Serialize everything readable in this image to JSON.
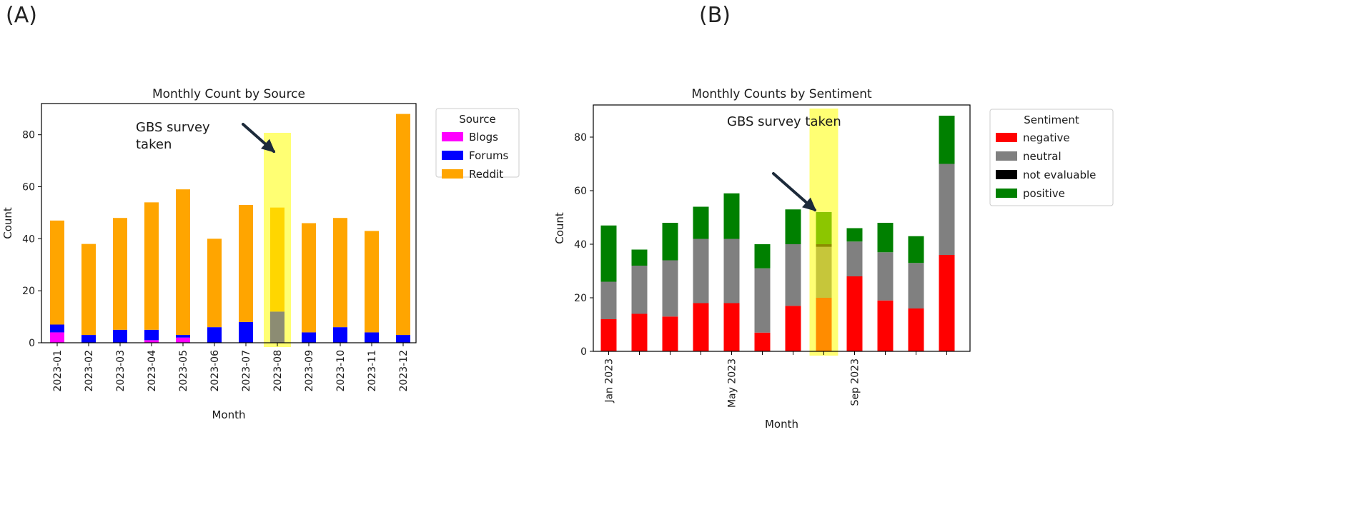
{
  "panels": {
    "a_label": "(A)",
    "b_label": "(B)"
  },
  "chart_data": [
    {
      "type": "bar",
      "stacked": true,
      "title": "Monthly Count by Source",
      "xlabel": "Month",
      "ylabel": "Count",
      "ylim": [
        0,
        92
      ],
      "yticks": [
        0,
        20,
        40,
        60,
        80
      ],
      "categories": [
        "2023-01",
        "2023-02",
        "2023-03",
        "2023-04",
        "2023-05",
        "2023-06",
        "2023-07",
        "2023-08",
        "2023-09",
        "2023-10",
        "2023-11",
        "2023-12"
      ],
      "legend": {
        "title": "Source",
        "placement": "outside-right"
      },
      "series": [
        {
          "name": "Blogs",
          "color": "#ff00ff",
          "values": [
            4,
            0,
            0,
            1,
            2,
            0,
            0,
            0,
            0,
            0,
            0,
            0
          ]
        },
        {
          "name": "Forums",
          "color": "#0000ff",
          "values": [
            3,
            3,
            5,
            4,
            1,
            6,
            8,
            12,
            4,
            6,
            4,
            3
          ]
        },
        {
          "name": "Reddit",
          "color": "#ffa500",
          "values": [
            40,
            35,
            43,
            49,
            56,
            34,
            45,
            40,
            42,
            42,
            39,
            85
          ]
        }
      ],
      "annotation": {
        "text_lines": [
          "GBS survey",
          "taken"
        ],
        "category_index": 7,
        "highlight_color": "#ffff00"
      }
    },
    {
      "type": "bar",
      "stacked": true,
      "title": "Monthly Counts by Sentiment",
      "xlabel": "Month",
      "ylabel": "Count",
      "ylim": [
        0,
        92
      ],
      "yticks": [
        0,
        20,
        40,
        60,
        80
      ],
      "categories": [
        "2023-01",
        "2023-02",
        "2023-03",
        "2023-04",
        "2023-05",
        "2023-06",
        "2023-07",
        "2023-08",
        "2023-09",
        "2023-10",
        "2023-11",
        "2023-12"
      ],
      "xtick_labels": [
        {
          "index": 0,
          "label": "Jan 2023"
        },
        {
          "index": 4,
          "label": "May 2023"
        },
        {
          "index": 8,
          "label": "Sep 2023"
        }
      ],
      "legend": {
        "title": "Sentiment",
        "placement": "outside-right"
      },
      "series": [
        {
          "name": "negative",
          "color": "#ff0000",
          "values": [
            12,
            14,
            13,
            18,
            18,
            7,
            17,
            20,
            28,
            19,
            16,
            36
          ]
        },
        {
          "name": "neutral",
          "color": "#808080",
          "values": [
            14,
            18,
            21,
            24,
            24,
            24,
            23,
            19,
            13,
            18,
            17,
            34
          ]
        },
        {
          "name": "not evaluable",
          "color": "#000000",
          "values": [
            0,
            0,
            0,
            0,
            0,
            0,
            0,
            1,
            0,
            0,
            0,
            0
          ]
        },
        {
          "name": "positive",
          "color": "#008000",
          "values": [
            21,
            6,
            14,
            12,
            17,
            9,
            13,
            12,
            5,
            11,
            10,
            18
          ]
        }
      ],
      "annotation": {
        "text_lines": [
          "GBS survey taken"
        ],
        "category_index": 7,
        "highlight_color": "#ffff00"
      }
    }
  ]
}
